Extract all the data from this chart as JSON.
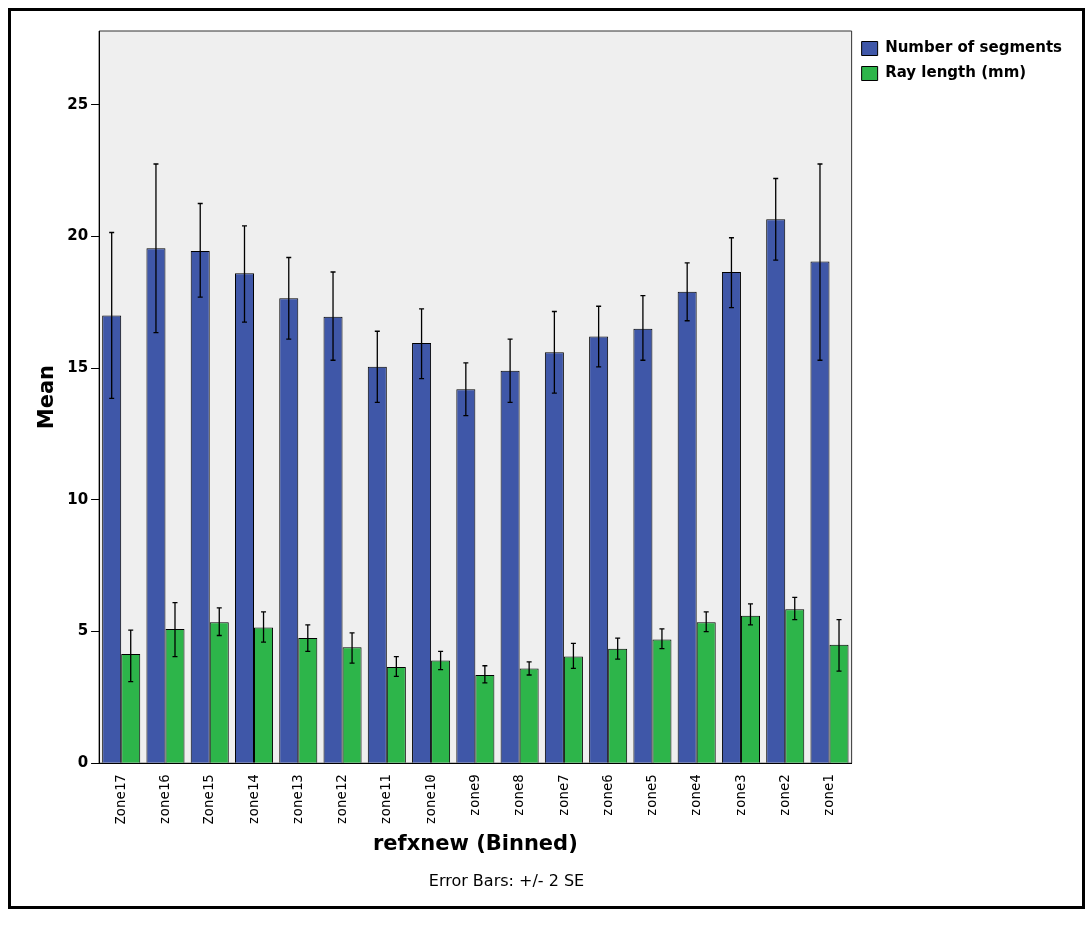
{
  "chart_data": {
    "type": "bar",
    "categories": [
      "Zone17",
      "zone16",
      "Zone15",
      "zone14",
      "zone13",
      "zone12",
      "zone11",
      "zone10",
      "zone9",
      "zone8",
      "zone7",
      "zone6",
      "zone5",
      "zone4",
      "zone3",
      "zone2",
      "zone1"
    ],
    "series": [
      {
        "name": "Number of segments",
        "color": "#3f57a8",
        "values": [
          17.0,
          19.55,
          19.45,
          18.6,
          17.65,
          16.95,
          15.05,
          15.95,
          14.2,
          14.9,
          15.6,
          16.2,
          16.5,
          17.9,
          18.65,
          20.65,
          19.05
        ],
        "errors": [
          [
            13.85,
            20.15
          ],
          [
            16.35,
            22.75
          ],
          [
            17.7,
            21.25
          ],
          [
            16.75,
            20.4
          ],
          [
            16.1,
            19.2
          ],
          [
            15.3,
            18.65
          ],
          [
            13.7,
            16.4
          ],
          [
            14.6,
            17.25
          ],
          [
            13.2,
            15.2
          ],
          [
            13.7,
            16.1
          ],
          [
            14.05,
            17.15
          ],
          [
            15.05,
            17.35
          ],
          [
            15.3,
            17.75
          ],
          [
            16.8,
            19.0
          ],
          [
            17.3,
            19.95
          ],
          [
            19.1,
            22.2
          ],
          [
            15.3,
            22.75
          ]
        ]
      },
      {
        "name": "Ray length (mm)",
        "color": "#2db54a",
        "values": [
          4.15,
          5.1,
          5.35,
          5.15,
          4.75,
          4.4,
          3.65,
          3.9,
          3.35,
          3.6,
          4.05,
          4.35,
          4.7,
          5.35,
          5.6,
          5.85,
          4.5
        ],
        "errors": [
          [
            3.1,
            5.05
          ],
          [
            4.05,
            6.1
          ],
          [
            4.85,
            5.9
          ],
          [
            4.6,
            5.75
          ],
          [
            4.25,
            5.25
          ],
          [
            3.8,
            4.95
          ],
          [
            3.3,
            4.05
          ],
          [
            3.55,
            4.25
          ],
          [
            3.05,
            3.7
          ],
          [
            3.35,
            3.85
          ],
          [
            3.6,
            4.55
          ],
          [
            3.95,
            4.75
          ],
          [
            4.35,
            5.1
          ],
          [
            5.0,
            5.75
          ],
          [
            5.25,
            6.05
          ],
          [
            5.45,
            6.3
          ],
          [
            3.5,
            5.45
          ]
        ]
      }
    ],
    "xlabel": "refxnew (Binned)",
    "ylabel": "Mean",
    "ylim": [
      0,
      27.8
    ],
    "yticks": [
      0,
      5,
      10,
      15,
      20,
      25
    ],
    "legend": "top right",
    "annotations": [
      "Error Bars: +/- 2 SE"
    ]
  }
}
